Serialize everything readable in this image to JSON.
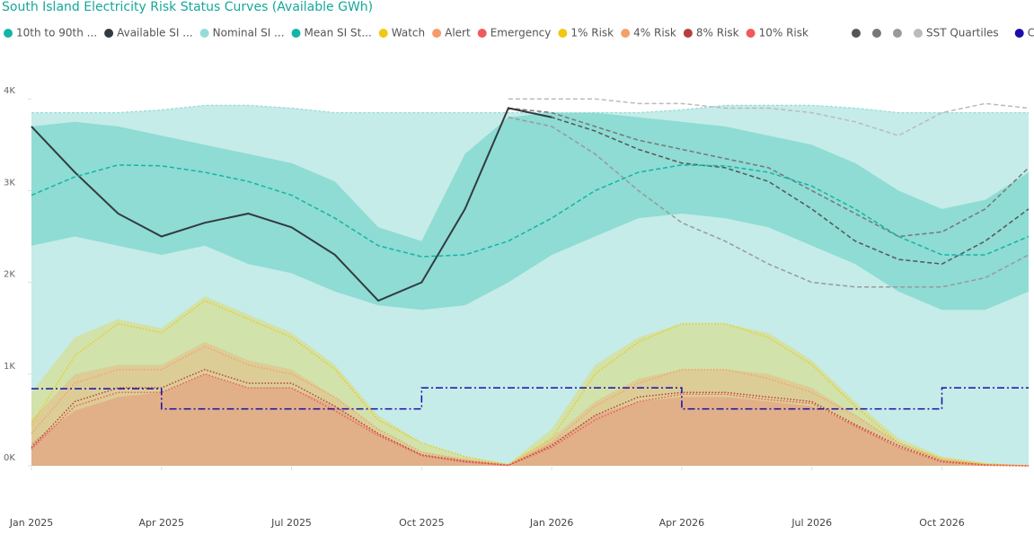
{
  "chart_data": {
    "type": "line",
    "title": "South Island Electricity Risk Status Curves (Available GWh)",
    "x": [
      "2025-01",
      "2025-02",
      "2025-03",
      "2025-04",
      "2025-05",
      "2025-06",
      "2025-07",
      "2025-08",
      "2025-09",
      "2025-10",
      "2025-11",
      "2025-12",
      "2026-01",
      "2026-02",
      "2026-03",
      "2026-04",
      "2026-05",
      "2026-06",
      "2026-07",
      "2026-08",
      "2026-09",
      "2026-10",
      "2026-11",
      "2026-12"
    ],
    "xlim": [
      "2025-01",
      "2026-12"
    ],
    "xticks": [
      {
        "value": "2025-01",
        "label": "Jan 2025"
      },
      {
        "value": "2025-04",
        "label": "Apr 2025"
      },
      {
        "value": "2025-07",
        "label": "Jul 2025"
      },
      {
        "value": "2025-10",
        "label": "Oct 2025"
      },
      {
        "value": "2026-01",
        "label": "Jan 2026"
      },
      {
        "value": "2026-04",
        "label": "Apr 2026"
      },
      {
        "value": "2026-07",
        "label": "Jul 2026"
      },
      {
        "value": "2026-10",
        "label": "Oct 2026"
      }
    ],
    "ylim": [
      0,
      4100
    ],
    "yticks": [
      {
        "value": 0,
        "label": "0K"
      },
      {
        "value": 1000,
        "label": "1K"
      },
      {
        "value": 2000,
        "label": "2K"
      },
      {
        "value": 3000,
        "label": "3K"
      },
      {
        "value": 4000,
        "label": "4K"
      }
    ],
    "band": {
      "name": "10th to 90th ...",
      "color": "#12b5a6",
      "opacity": 0.3,
      "low": [
        2400,
        2500,
        2400,
        2300,
        2400,
        2200,
        2100,
        1900,
        1750,
        1700,
        1750,
        2000,
        2300,
        2500,
        2700,
        2750,
        2700,
        2600,
        2400,
        2200,
        1900,
        1700,
        1700,
        1900
      ],
      "high": [
        3700,
        3750,
        3700,
        3600,
        3500,
        3400,
        3300,
        3100,
        2600,
        2450,
        3400,
        3800,
        3850,
        3850,
        3800,
        3750,
        3700,
        3600,
        3500,
        3300,
        3000,
        2800,
        2900,
        3200
      ]
    },
    "series": [
      {
        "name": "Available SI ...",
        "color": "#333a3f",
        "style": "line",
        "values": [
          3700,
          3200,
          2750,
          2500,
          2650,
          2750,
          2600,
          2300,
          1800,
          2000,
          2800,
          3900,
          3800,
          null,
          null,
          null,
          null,
          null,
          null,
          null,
          null,
          null,
          null,
          null
        ]
      },
      {
        "name": "Nominal SI ...",
        "color": "#95dcd6",
        "style": "area",
        "opacity": 0.55,
        "values": [
          3850,
          3850,
          3850,
          3880,
          3930,
          3930,
          3900,
          3850,
          3850,
          3850,
          3850,
          3850,
          3850,
          3850,
          3850,
          3880,
          3930,
          3930,
          3930,
          3900,
          3850,
          3850,
          3850,
          3850
        ]
      },
      {
        "name": "Mean SI St...",
        "color": "#12b5a6",
        "style": "dashed",
        "values": [
          2950,
          3150,
          3280,
          3270,
          3200,
          3100,
          2950,
          2700,
          2400,
          2280,
          2300,
          2450,
          2700,
          3000,
          3200,
          3280,
          3270,
          3200,
          3050,
          2800,
          2500,
          2300,
          2300,
          2500
        ]
      },
      {
        "name": "Watch",
        "color": "#f2c80f",
        "style": "area",
        "opacity": 0.28,
        "values": [
          800,
          1400,
          1600,
          1500,
          1850,
          1650,
          1450,
          1100,
          550,
          250,
          100,
          20,
          400,
          1100,
          1400,
          1550,
          1550,
          1450,
          1150,
          700,
          300,
          100,
          30,
          0
        ]
      },
      {
        "name": "Alert",
        "color": "#f59a6b",
        "style": "area",
        "opacity": 0.3,
        "values": [
          500,
          1000,
          1100,
          1100,
          1350,
          1150,
          1050,
          750,
          400,
          150,
          80,
          20,
          300,
          700,
          950,
          1050,
          1050,
          1000,
          850,
          550,
          250,
          80,
          20,
          0
        ]
      },
      {
        "name": "Emergency",
        "color": "#f05a5a",
        "style": "area",
        "opacity": 0.25,
        "values": [
          250,
          600,
          750,
          800,
          1000,
          850,
          850,
          650,
          350,
          120,
          60,
          10,
          250,
          550,
          700,
          750,
          750,
          700,
          650,
          450,
          200,
          50,
          10,
          0
        ]
      },
      {
        "name": "1% Risk",
        "color": "#f2c80f",
        "style": "dotted",
        "values": [
          450,
          1200,
          1550,
          1450,
          1800,
          1600,
          1400,
          1050,
          500,
          250,
          100,
          10,
          300,
          1000,
          1350,
          1550,
          1550,
          1400,
          1100,
          650,
          250,
          80,
          20,
          0
        ]
      },
      {
        "name": "4% Risk",
        "color": "#f5a06b",
        "style": "dotted",
        "values": [
          350,
          900,
          1050,
          1050,
          1300,
          1100,
          1000,
          750,
          400,
          150,
          60,
          10,
          250,
          650,
          900,
          1050,
          1050,
          950,
          800,
          550,
          250,
          60,
          10,
          0
        ]
      },
      {
        "name": "8% Risk",
        "color": "#b5403a",
        "style": "dotted",
        "values": [
          200,
          700,
          850,
          850,
          1050,
          900,
          900,
          650,
          350,
          120,
          50,
          5,
          220,
          550,
          750,
          800,
          800,
          750,
          700,
          450,
          220,
          50,
          10,
          0
        ]
      },
      {
        "name": "10% Risk",
        "color": "#f05a5a",
        "style": "dotted",
        "values": [
          180,
          650,
          800,
          800,
          1000,
          850,
          850,
          600,
          330,
          110,
          40,
          5,
          200,
          500,
          700,
          780,
          780,
          720,
          680,
          430,
          200,
          40,
          5,
          0
        ]
      },
      {
        "name": "Contingent",
        "color": "#1a0dab",
        "style": "step",
        "values": [
          840,
          840,
          840,
          620,
          620,
          620,
          620,
          620,
          620,
          850,
          850,
          850,
          850,
          850,
          850,
          620,
          620,
          620,
          620,
          620,
          620,
          850,
          850,
          850
        ]
      }
    ],
    "sst": {
      "name": "SST Quartiles",
      "lines": [
        {
          "color": "#555555",
          "values": [
            null,
            null,
            null,
            null,
            null,
            null,
            null,
            null,
            null,
            null,
            null,
            3900,
            3800,
            3650,
            3450,
            3300,
            3250,
            3100,
            2800,
            2450,
            2250,
            2200,
            2450,
            2800
          ]
        },
        {
          "color": "#777777",
          "values": [
            null,
            null,
            null,
            null,
            null,
            null,
            null,
            null,
            null,
            null,
            null,
            3900,
            3850,
            3700,
            3550,
            3450,
            3350,
            3250,
            3000,
            2750,
            2500,
            2550,
            2800,
            3250
          ]
        },
        {
          "color": "#999999",
          "values": [
            null,
            null,
            null,
            null,
            null,
            null,
            null,
            null,
            null,
            null,
            null,
            3800,
            3700,
            3400,
            3000,
            2650,
            2450,
            2200,
            2000,
            1950,
            1950,
            1950,
            2050,
            2300
          ]
        },
        {
          "color": "#bbbbbb",
          "values": [
            null,
            null,
            null,
            null,
            null,
            null,
            null,
            null,
            null,
            null,
            null,
            4000,
            4000,
            4000,
            3950,
            3950,
            3900,
            3900,
            3850,
            3750,
            3600,
            3850,
            3950,
            3900
          ]
        }
      ]
    }
  }
}
